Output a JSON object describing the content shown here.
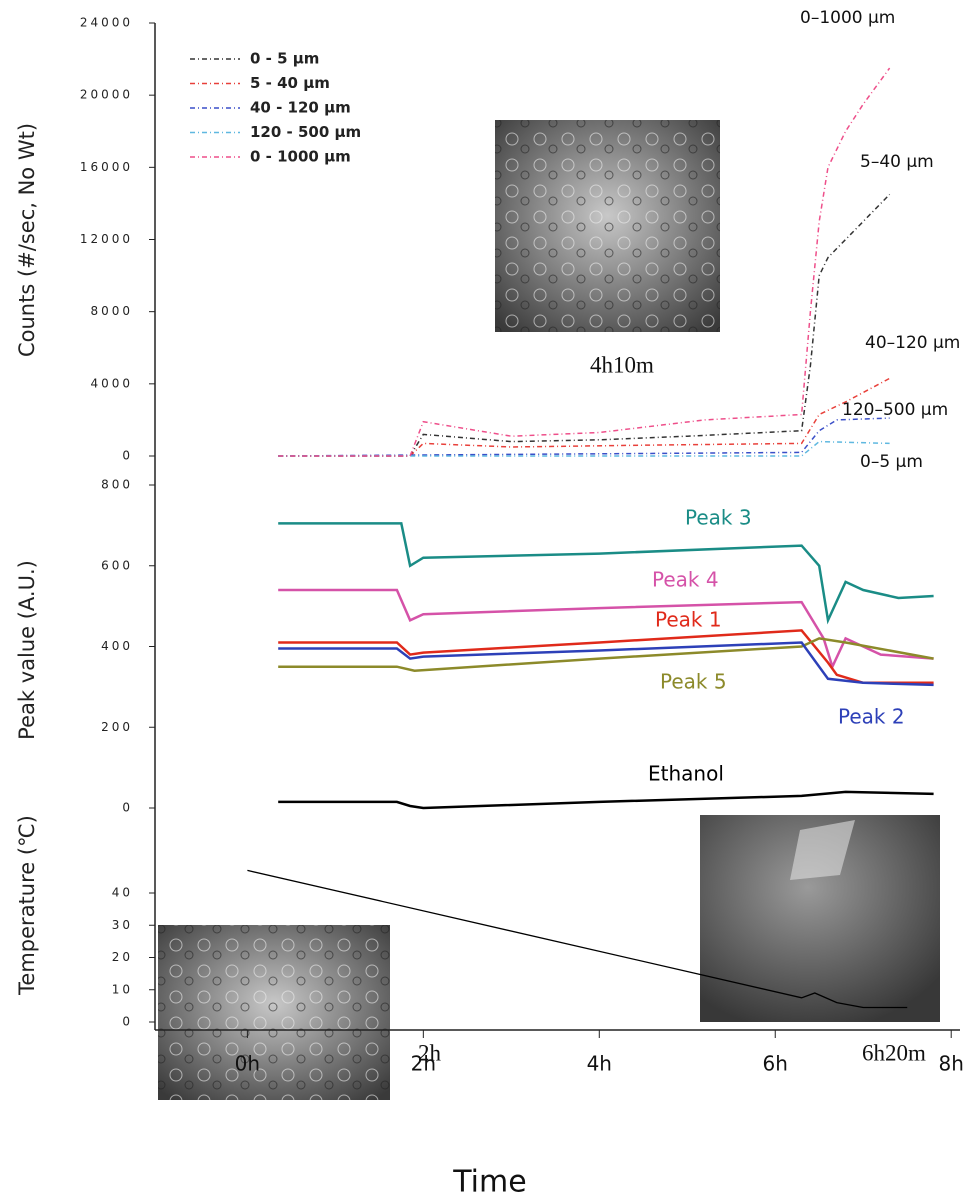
{
  "chart_data": [
    {
      "type": "line",
      "ylabel": "Counts (#/sec, No Wt)",
      "xlim": [
        -1.05,
        8.1
      ],
      "ylim": [
        0,
        24000
      ],
      "yticks": [
        0,
        4000,
        8000,
        12000,
        16000,
        20000,
        24000
      ],
      "legend": "upper left",
      "series": [
        {
          "name": "0 - 5 µm",
          "color": "#333333",
          "x": [
            0.35,
            1.85,
            2.0,
            3.0,
            4.0,
            5.0,
            6.3,
            6.4,
            6.5,
            6.6,
            7.0,
            7.3
          ],
          "values": [
            0,
            0,
            1200,
            800,
            900,
            1100,
            1400,
            5000,
            10000,
            11000,
            13000,
            14500
          ]
        },
        {
          "name": "5 - 40 µm",
          "color": "#e8403a",
          "x": [
            0.35,
            1.85,
            2.0,
            3.0,
            4.5,
            6.3,
            6.5,
            6.8,
            7.3
          ],
          "values": [
            0,
            0,
            700,
            500,
            600,
            700,
            2300,
            3000,
            4300
          ]
        },
        {
          "name": "40 - 120 µm",
          "color": "#3a4fc8",
          "x": [
            0.35,
            6.3,
            6.5,
            6.7,
            7.3
          ],
          "values": [
            0,
            200,
            1400,
            2000,
            2100
          ]
        },
        {
          "name": "120 - 500 µm",
          "color": "#5fb8e0",
          "x": [
            0.35,
            6.3,
            6.4,
            6.5,
            7.3
          ],
          "values": [
            0,
            0,
            400,
            800,
            700
          ]
        },
        {
          "name": "0 - 1000 µm",
          "color": "#ee4f8a",
          "x": [
            0.35,
            1.85,
            2.0,
            3.0,
            4.0,
            5.2,
            6.3,
            6.4,
            6.5,
            6.6,
            6.8,
            7.0,
            7.3
          ],
          "values": [
            0,
            0,
            1900,
            1100,
            1300,
            2000,
            2300,
            8000,
            13000,
            16000,
            18000,
            19500,
            21500
          ]
        }
      ],
      "annotations": [
        "0–1000 µm",
        "5–40 µm",
        "40–120 µm",
        "120–500 µm",
        "0–5 µm",
        "4h10m"
      ]
    },
    {
      "type": "line",
      "ylabel": "Peak value (A.U.)",
      "xlim": [
        -1.05,
        8.1
      ],
      "ylim": [
        0,
        800
      ],
      "yticks": [
        0,
        200,
        400,
        600,
        800
      ],
      "series": [
        {
          "name": "Peak 3",
          "color": "#1a8c86",
          "x": [
            0.35,
            1.75,
            1.85,
            2.0,
            4.0,
            6.3,
            6.5,
            6.6,
            6.8,
            7.0,
            7.4,
            7.8
          ],
          "values": [
            705,
            705,
            600,
            620,
            630,
            650,
            600,
            465,
            560,
            540,
            520,
            525
          ]
        },
        {
          "name": "Peak 4",
          "color": "#d552a8",
          "x": [
            0.35,
            1.7,
            1.85,
            2.0,
            4.0,
            6.3,
            6.55,
            6.65,
            6.8,
            7.2,
            7.8
          ],
          "values": [
            540,
            540,
            465,
            480,
            495,
            510,
            420,
            350,
            420,
            380,
            370
          ]
        },
        {
          "name": "Peak 1",
          "color": "#e02a1a",
          "x": [
            0.35,
            1.7,
            1.85,
            2.0,
            4.0,
            6.3,
            6.6,
            6.7,
            7.0,
            7.8
          ],
          "values": [
            410,
            410,
            380,
            385,
            410,
            440,
            360,
            330,
            310,
            310
          ]
        },
        {
          "name": "Peak 5",
          "color": "#8c8a2a",
          "x": [
            0.35,
            1.7,
            1.9,
            4.0,
            6.3,
            6.5,
            6.8,
            7.8
          ],
          "values": [
            350,
            350,
            340,
            370,
            400,
            420,
            410,
            370
          ]
        },
        {
          "name": "Peak 2",
          "color": "#2d40b8",
          "x": [
            0.35,
            1.7,
            1.85,
            2.0,
            4.0,
            6.3,
            6.6,
            7.0,
            7.8
          ],
          "values": [
            395,
            395,
            370,
            375,
            390,
            410,
            320,
            310,
            305
          ]
        },
        {
          "name": "Ethanol",
          "color": "#000000",
          "x": [
            0.35,
            1.7,
            1.85,
            2.0,
            4.0,
            6.3,
            6.8,
            7.8
          ],
          "values": [
            15,
            15,
            5,
            0,
            15,
            30,
            40,
            35
          ]
        }
      ]
    },
    {
      "type": "line",
      "ylabel": "Temperature (℃)",
      "xlabel": "Time",
      "xlim": [
        -1.05,
        8.1
      ],
      "ylim": [
        0,
        40
      ],
      "yticks": [
        0,
        10,
        20,
        30,
        40
      ],
      "xticks": [
        {
          "value": 0,
          "label": "0h"
        },
        {
          "value": 2,
          "label": "2h"
        },
        {
          "value": 4,
          "label": "4h"
        },
        {
          "value": 6,
          "label": "6h"
        },
        {
          "value": 8,
          "label": "8h"
        }
      ],
      "series": [
        {
          "color": "#000000",
          "x": [
            0,
            6.3,
            6.45,
            6.7,
            7.0,
            7.5
          ],
          "values": [
            47,
            7.5,
            9,
            6,
            4.5,
            4.5
          ]
        }
      ],
      "annotations": [
        "2h",
        "6h20m"
      ]
    }
  ]
}
